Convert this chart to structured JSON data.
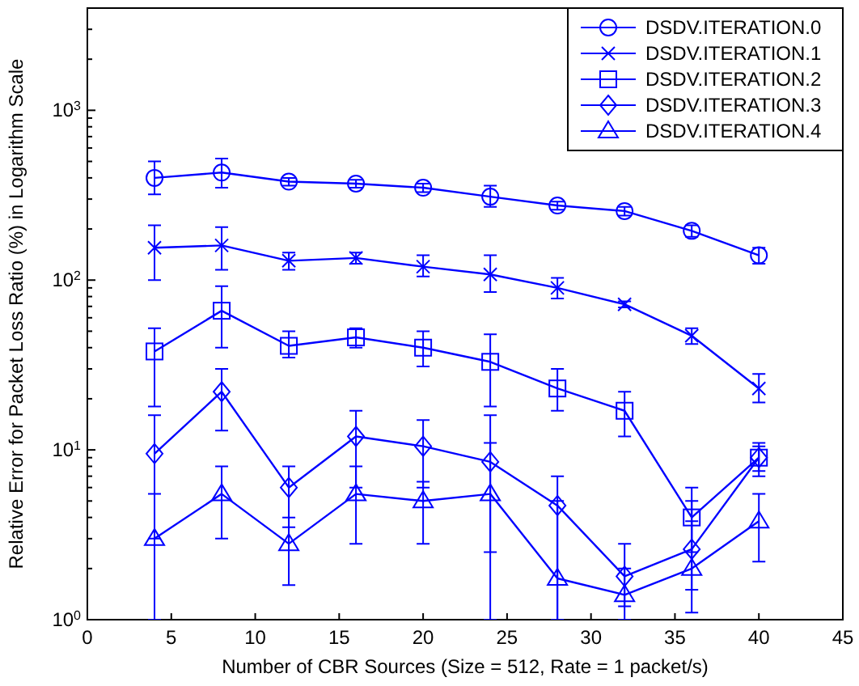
{
  "chart_data": {
    "type": "line",
    "xlabel": "Number of CBR Sources (Size = 512, Rate = 1 packet/s)",
    "ylabel": "Relative Error for Packet Loss Ratio (%) in Logarithm Scale",
    "log": "y",
    "x": [
      4,
      8,
      12,
      16,
      20,
      24,
      28,
      32,
      36,
      40
    ],
    "xlim": [
      0,
      45
    ],
    "xticks": [
      0,
      5,
      10,
      15,
      20,
      25,
      30,
      35,
      40,
      45
    ],
    "ylim": [
      1,
      4000
    ],
    "yticks": [
      {
        "value": 1,
        "label": "10$^{0}$"
      },
      {
        "value": 10,
        "label": "10$^{1}$"
      },
      {
        "value": 100,
        "label": "10$^{2}$"
      },
      {
        "value": 1000,
        "label": "10$^{3}$"
      }
    ],
    "legend": "top right",
    "grid": false,
    "line_style": "solid",
    "series": [
      {
        "name": "DSDV.ITERATION.0",
        "color": "#0000ff",
        "marker": "circle",
        "values": [
          400,
          430,
          380,
          370,
          350,
          310,
          275,
          255,
          195,
          140
        ],
        "errors": [
          [
            320,
            500
          ],
          [
            350,
            520
          ],
          [
            360,
            400
          ],
          [
            350,
            390
          ],
          [
            330,
            370
          ],
          [
            270,
            360
          ],
          [
            260,
            290
          ],
          [
            240,
            270
          ],
          [
            180,
            210
          ],
          [
            125,
            155
          ]
        ]
      },
      {
        "name": "DSDV.ITERATION.1",
        "color": "#0000ff",
        "marker": "cross",
        "values": [
          155,
          160,
          130,
          135,
          120,
          108,
          90,
          72,
          47,
          23
        ],
        "errors": [
          [
            100,
            210
          ],
          [
            115,
            205
          ],
          [
            115,
            145
          ],
          [
            125,
            145
          ],
          [
            105,
            140
          ],
          [
            85,
            140
          ],
          [
            78,
            103
          ],
          [
            69,
            75
          ],
          [
            42,
            52
          ],
          [
            19,
            28
          ]
        ]
      },
      {
        "name": "DSDV.ITERATION.2",
        "color": "#0000ff",
        "marker": "square",
        "values": [
          38,
          66,
          41,
          46,
          40,
          33,
          23,
          17,
          4,
          9
        ],
        "errors": [
          [
            18,
            52
          ],
          [
            40,
            92
          ],
          [
            35,
            50
          ],
          [
            40,
            52
          ],
          [
            31,
            50
          ],
          [
            18,
            48
          ],
          [
            17,
            30
          ],
          [
            12,
            22
          ],
          [
            2.5,
            6
          ],
          [
            7,
            11
          ]
        ]
      },
      {
        "name": "DSDV.ITERATION.3",
        "color": "#0000ff",
        "marker": "diamond",
        "values": [
          9.5,
          22,
          6,
          12,
          10.5,
          8.5,
          4.7,
          1.8,
          2.6,
          9
        ],
        "errors": [
          [
            3,
            16
          ],
          [
            13,
            30
          ],
          [
            3.5,
            8
          ],
          [
            6,
            17
          ],
          [
            6,
            15
          ],
          [
            2.5,
            16
          ],
          [
            1,
            7
          ],
          [
            1.2,
            2.8
          ],
          [
            1.5,
            5
          ],
          [
            7.5,
            10.5
          ]
        ]
      },
      {
        "name": "DSDV.ITERATION.4",
        "color": "#0000ff",
        "marker": "triangle",
        "values": [
          3,
          5.5,
          2.8,
          5.5,
          5,
          5.5,
          1.75,
          1.4,
          2,
          3.8
        ],
        "errors": [
          [
            1,
            5.5
          ],
          [
            3,
            8
          ],
          [
            1.6,
            4
          ],
          [
            2.8,
            8
          ],
          [
            2.8,
            6.5
          ],
          [
            1,
            11
          ],
          [
            1,
            5
          ],
          [
            1,
            2
          ],
          [
            1.1,
            3.8
          ],
          [
            2.2,
            5.5
          ]
        ]
      }
    ]
  }
}
